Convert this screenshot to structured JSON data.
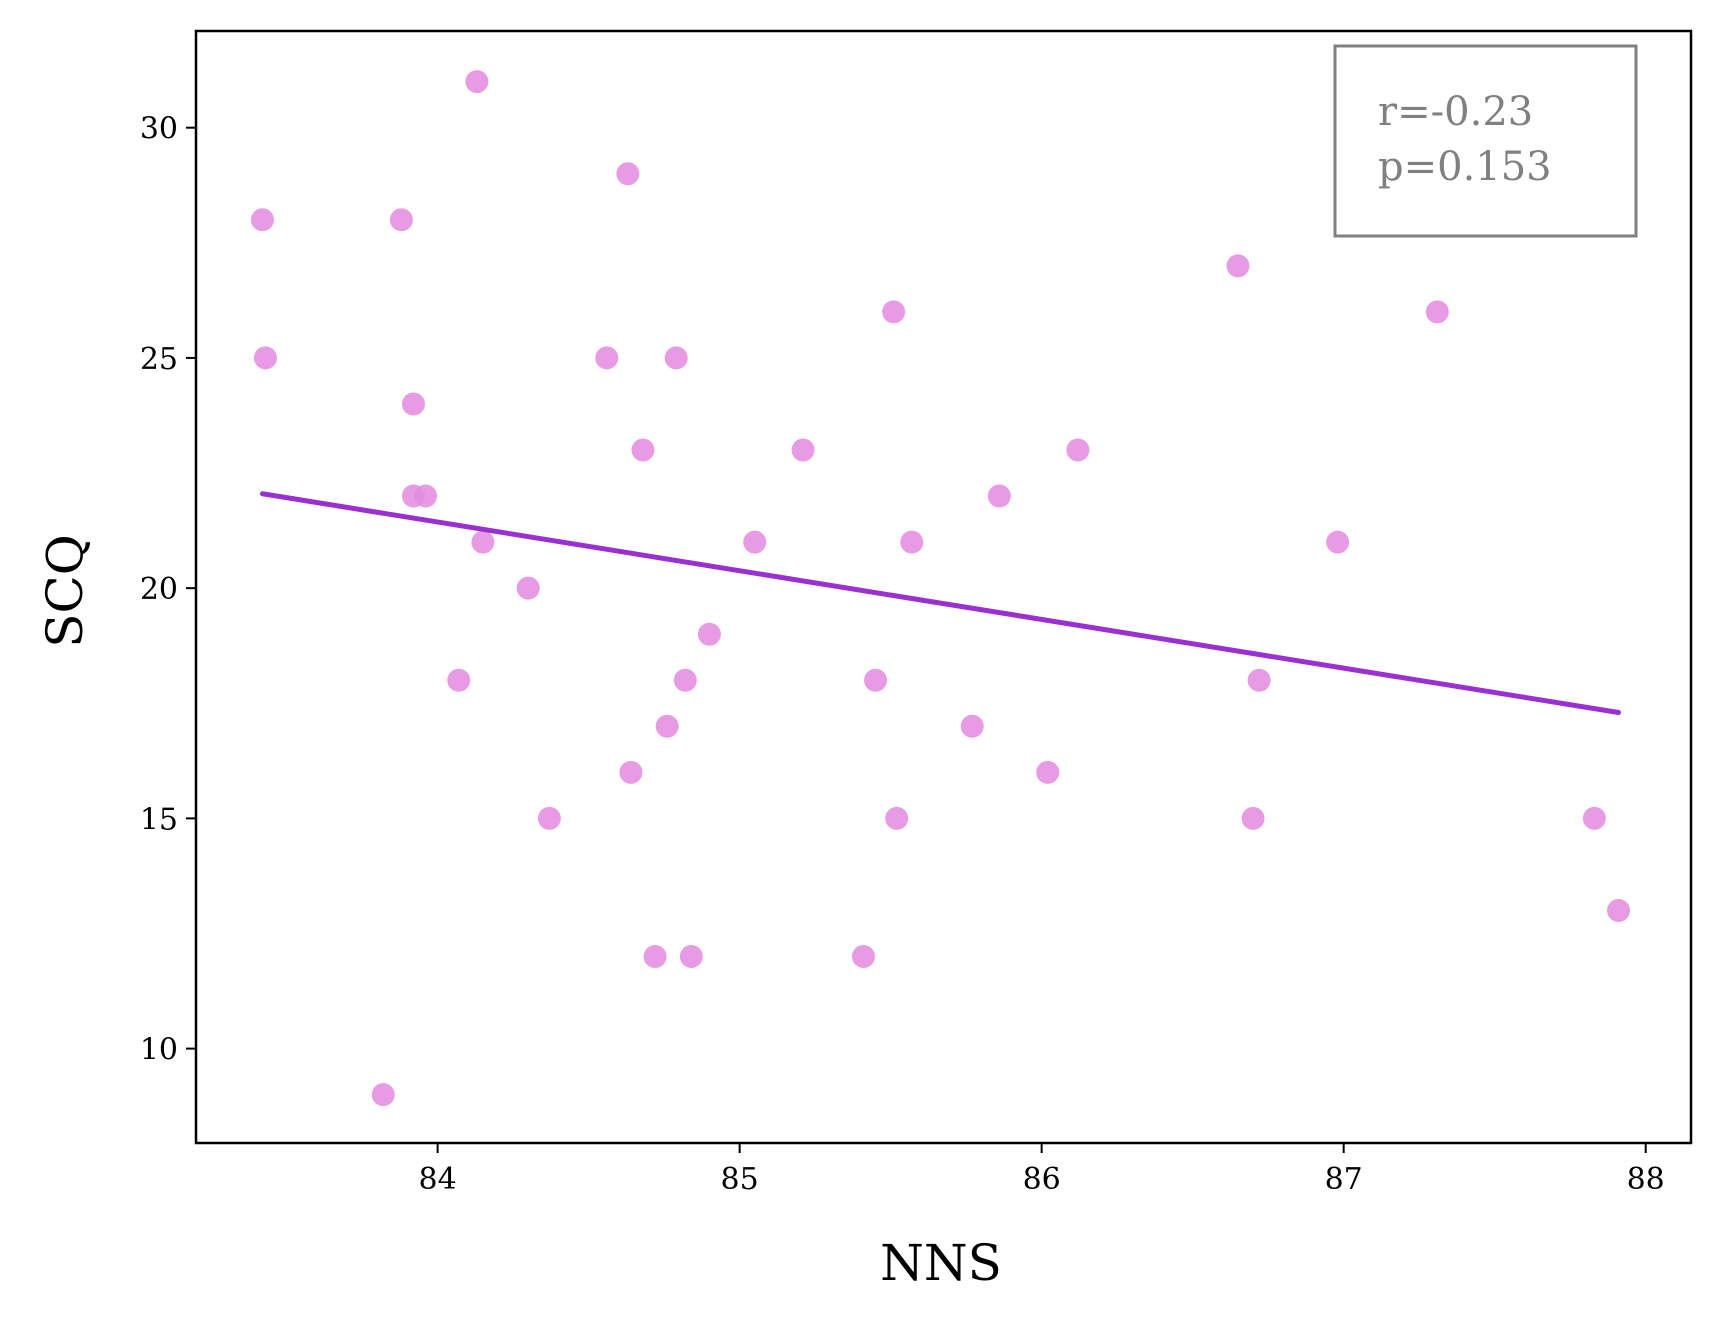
{
  "chart_data": {
    "type": "scatter",
    "xlabel": "NNS",
    "ylabel": "SCQ",
    "xlim": [
      83.2,
      88.15
    ],
    "ylim": [
      7.95,
      32.1
    ],
    "xticks": [
      84,
      85,
      86,
      87,
      88
    ],
    "yticks": [
      10,
      15,
      20,
      25,
      30
    ],
    "grid": false,
    "point_color": "#e28de0",
    "line_color": "#9b30d0",
    "series": [
      {
        "points": [
          {
            "x": 84.13,
            "y": 31
          },
          {
            "x": 83.42,
            "y": 28
          },
          {
            "x": 83.88,
            "y": 28
          },
          {
            "x": 84.63,
            "y": 29
          },
          {
            "x": 83.43,
            "y": 25
          },
          {
            "x": 83.92,
            "y": 24
          },
          {
            "x": 83.92,
            "y": 22
          },
          {
            "x": 83.96,
            "y": 22
          },
          {
            "x": 84.15,
            "y": 21
          },
          {
            "x": 84.07,
            "y": 18
          },
          {
            "x": 84.3,
            "y": 20
          },
          {
            "x": 84.37,
            "y": 15
          },
          {
            "x": 83.82,
            "y": 9
          },
          {
            "x": 84.56,
            "y": 25
          },
          {
            "x": 84.79,
            "y": 25
          },
          {
            "x": 84.68,
            "y": 23
          },
          {
            "x": 84.64,
            "y": 16
          },
          {
            "x": 84.76,
            "y": 17
          },
          {
            "x": 84.82,
            "y": 18
          },
          {
            "x": 84.9,
            "y": 19
          },
          {
            "x": 84.72,
            "y": 12
          },
          {
            "x": 84.84,
            "y": 12
          },
          {
            "x": 85.05,
            "y": 21
          },
          {
            "x": 85.21,
            "y": 23
          },
          {
            "x": 85.51,
            "y": 26
          },
          {
            "x": 85.57,
            "y": 21
          },
          {
            "x": 85.45,
            "y": 18
          },
          {
            "x": 85.52,
            "y": 15
          },
          {
            "x": 85.41,
            "y": 12
          },
          {
            "x": 85.77,
            "y": 17
          },
          {
            "x": 85.86,
            "y": 22
          },
          {
            "x": 86.02,
            "y": 16
          },
          {
            "x": 86.12,
            "y": 23
          },
          {
            "x": 86.65,
            "y": 27
          },
          {
            "x": 86.72,
            "y": 18
          },
          {
            "x": 86.7,
            "y": 15
          },
          {
            "x": 86.98,
            "y": 21
          },
          {
            "x": 87.31,
            "y": 26
          },
          {
            "x": 87.83,
            "y": 15
          },
          {
            "x": 87.91,
            "y": 13
          }
        ]
      }
    ],
    "trendline": {
      "x": [
        83.42,
        87.91
      ],
      "y": [
        22.05,
        17.3
      ]
    },
    "annotation": {
      "lines": [
        "r=-0.23",
        "p=0.153"
      ],
      "placement": "top-right",
      "text_color": "#808080",
      "border_color": "#808080"
    }
  }
}
